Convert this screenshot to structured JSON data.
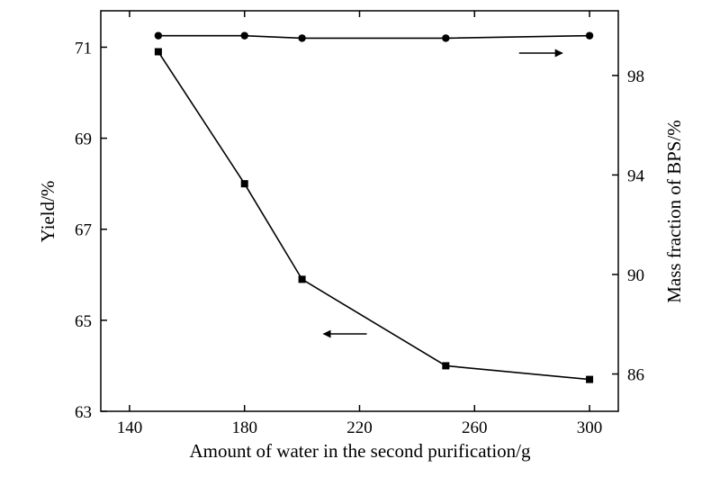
{
  "chart_data": {
    "type": "line",
    "title": "",
    "xlabel": "Amount of water in the second purification/g",
    "ylabel": "Yield/%",
    "y2label": "Mass fraction of BPS/%",
    "xlim": [
      130,
      310
    ],
    "ylim": [
      63,
      71.8
    ],
    "y2lim": [
      84.5,
      100.6
    ],
    "x_ticks": [
      140,
      180,
      220,
      260,
      300
    ],
    "y_ticks": [
      63,
      65,
      67,
      69,
      71
    ],
    "y2_ticks": [
      86,
      90,
      94,
      98
    ],
    "grid": false,
    "legend": "none",
    "x": [
      150,
      180,
      200,
      250,
      300
    ],
    "series": [
      {
        "axis": "left",
        "marker": "square",
        "values": [
          70.9,
          68.0,
          65.9,
          64.0,
          63.7
        ]
      },
      {
        "axis": "right",
        "marker": "circle",
        "values": [
          99.6,
          99.6,
          99.5,
          99.5,
          99.6
        ]
      }
    ],
    "annotations": [
      {
        "type": "arrow",
        "direction": "right",
        "points_to": "right axis",
        "near": {
          "x": 283,
          "y2": 98.9
        }
      },
      {
        "type": "arrow",
        "direction": "left",
        "points_to": "left axis",
        "near": {
          "x": 215,
          "y": 64.7
        }
      }
    ],
    "colors": {
      "line": "#000000",
      "marker": "#000000"
    }
  }
}
